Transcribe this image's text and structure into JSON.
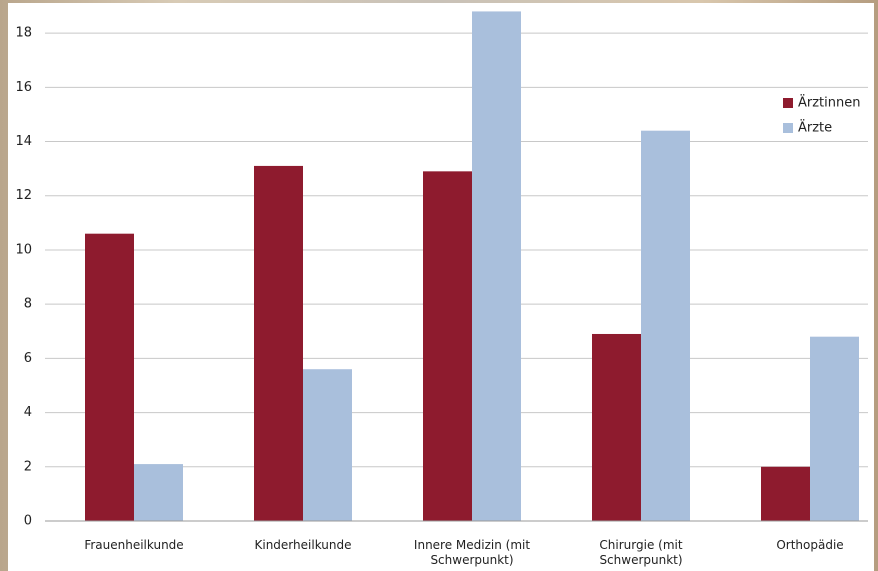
{
  "chart_data": {
    "type": "bar",
    "categories": [
      "Frauenheilkunde",
      "Kinderheilkunde",
      "Innere Medizin (mit Schwerpunkt)",
      "Chirurgie (mit Schwerpunkt)",
      "Orthopädie"
    ],
    "series": [
      {
        "name": "Ärztinnen",
        "color": "#8e1b2e",
        "values": [
          10.6,
          13.1,
          12.9,
          6.9,
          2.0
        ]
      },
      {
        "name": "Ärzte",
        "color": "#a9bfdc",
        "values": [
          2.1,
          5.6,
          18.8,
          14.4,
          6.8
        ]
      }
    ],
    "ylim": [
      0,
      19
    ],
    "yticks": [
      0,
      2,
      4,
      6,
      8,
      10,
      12,
      14,
      16,
      18
    ],
    "grid": true,
    "legend": "right"
  }
}
